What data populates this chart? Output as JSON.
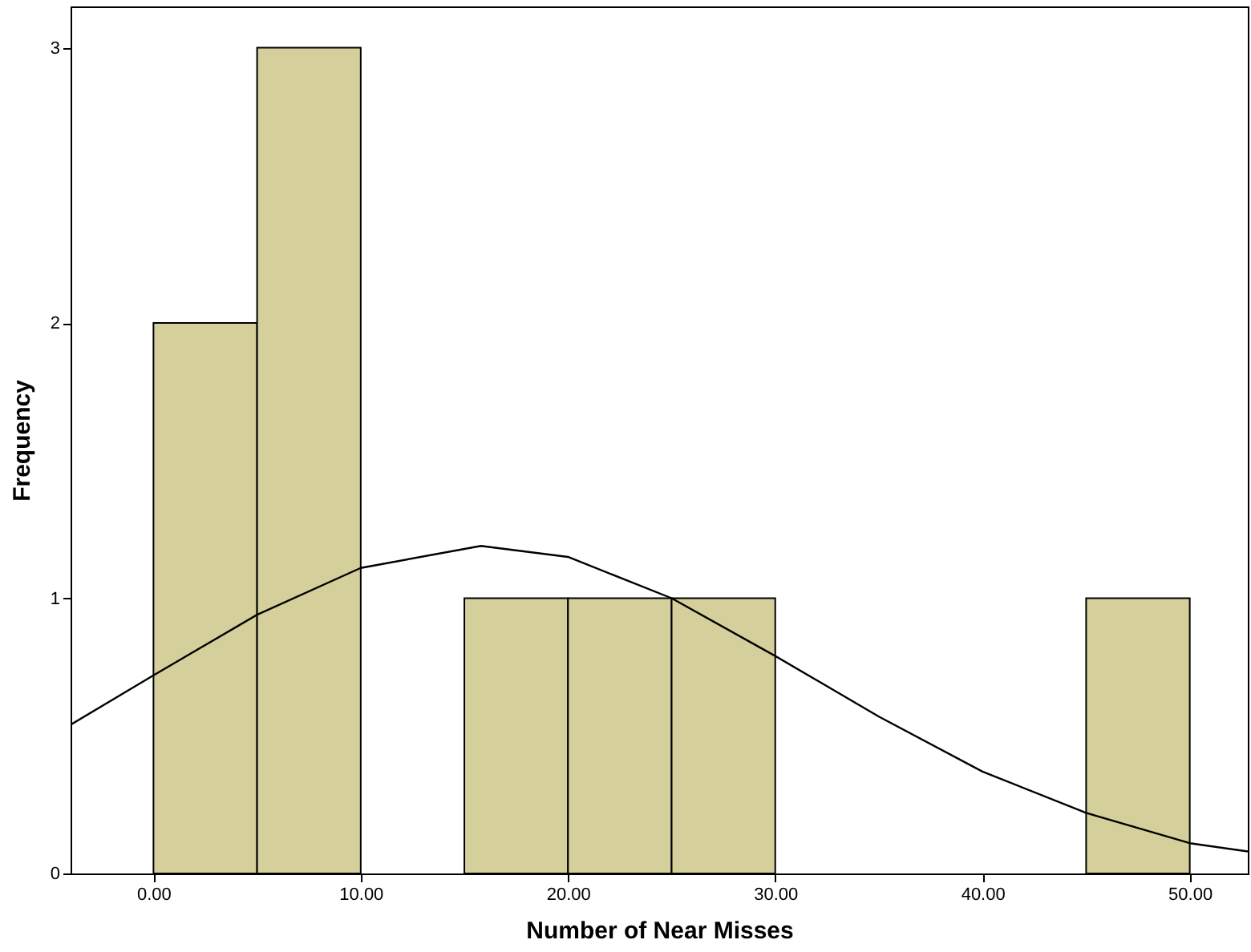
{
  "chart_data": {
    "type": "histogram",
    "xlabel": "Number of Near Misses",
    "ylabel": "Frequency",
    "bins": [
      0,
      5,
      10,
      15,
      20,
      25,
      30,
      35,
      40,
      45,
      50
    ],
    "values": [
      2,
      3,
      0,
      1,
      1,
      1,
      0,
      0,
      0,
      1
    ],
    "color": "#d4cf9b",
    "series": [
      {
        "type": "line",
        "color": "#000000",
        "x": [
          -4,
          0,
          5,
          10,
          15.8,
          20,
          25,
          30,
          35,
          40,
          45,
          50,
          52.8
        ],
        "values": [
          0.54,
          0.72,
          0.94,
          1.11,
          1.19,
          1.15,
          1.0,
          0.79,
          0.57,
          0.37,
          0.22,
          0.11,
          0.08
        ]
      }
    ],
    "xlim": [
      -4,
      52.8
    ],
    "ylim": [
      0,
      3.15
    ],
    "xticks": [
      {
        "value": 0,
        "label": "0.00"
      },
      {
        "value": 10,
        "label": "10.00"
      },
      {
        "value": 20,
        "label": "20.00"
      },
      {
        "value": 30,
        "label": "30.00"
      },
      {
        "value": 40,
        "label": "40.00"
      },
      {
        "value": 50,
        "label": "50.00"
      }
    ],
    "yticks": [
      0,
      1,
      2,
      3
    ],
    "grid": false
  }
}
